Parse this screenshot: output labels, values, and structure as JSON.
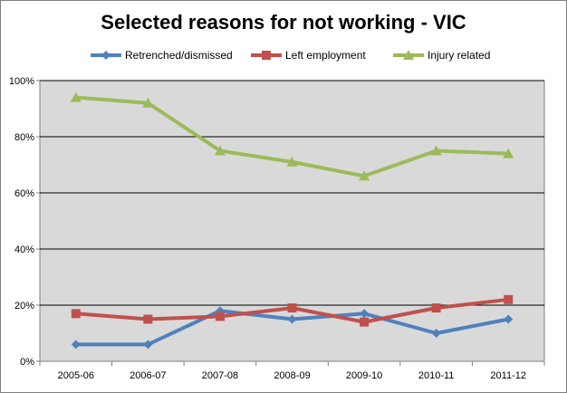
{
  "chart_data": {
    "type": "line",
    "title": "Selected reasons for not working - VIC",
    "categories": [
      "2005-06",
      "2006-07",
      "2007-08",
      "2008-09",
      "2009-10",
      "2010-11",
      "2011-12"
    ],
    "ylim": [
      0,
      100
    ],
    "yticks": [
      0,
      20,
      40,
      60,
      80,
      100
    ],
    "ytick_labels": [
      "0%",
      "20%",
      "40%",
      "60%",
      "80%",
      "100%"
    ],
    "grid": true,
    "legend_position": "top",
    "plot_background": "#d9d9d9",
    "series": [
      {
        "name": "Retrenched/dismissed",
        "color": "#4f81bd",
        "marker": "diamond",
        "values": [
          6,
          6,
          18,
          15,
          17,
          10,
          15
        ]
      },
      {
        "name": "Left employment",
        "color": "#c0504d",
        "marker": "square",
        "values": [
          17,
          15,
          16,
          19,
          14,
          19,
          22
        ]
      },
      {
        "name": "Injury related",
        "color": "#9bbb59",
        "marker": "triangle",
        "values": [
          94,
          92,
          75,
          71,
          66,
          75,
          74
        ]
      }
    ]
  }
}
